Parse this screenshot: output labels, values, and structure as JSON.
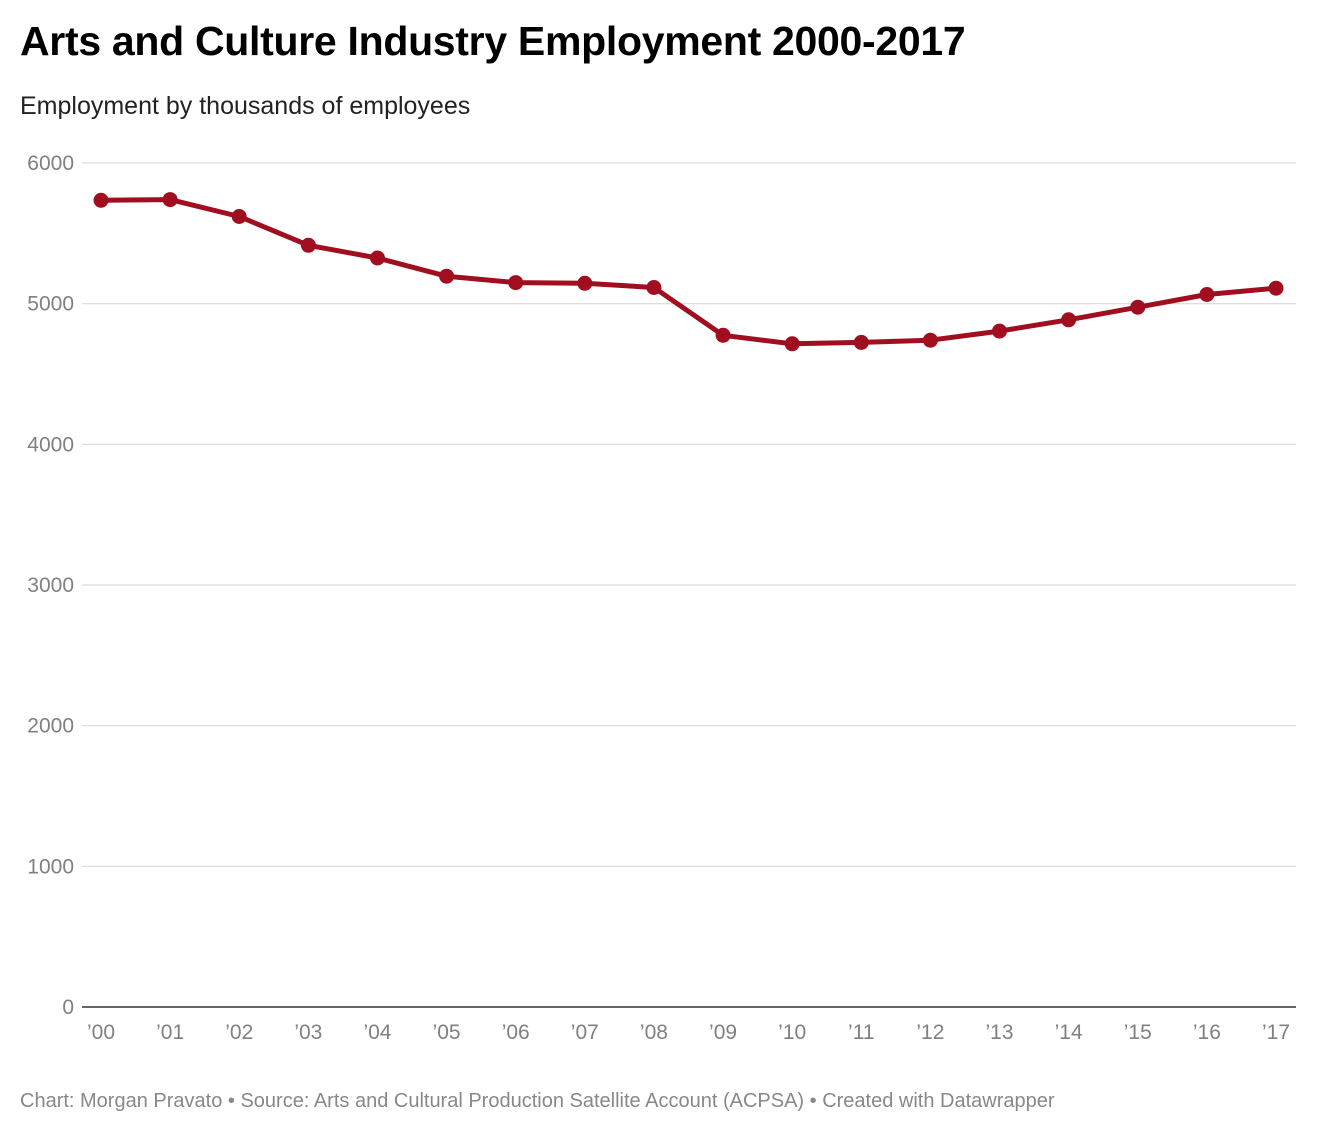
{
  "header": {
    "title": "Arts and Culture Industry Employment 2000-2017",
    "subtitle": "Employment by thousands of employees"
  },
  "footer": {
    "chart_credit": "Chart: Morgan Pravato",
    "source": "Source: Arts and Cultural Production Satellite Account (ACPSA)",
    "tool": "Created with Datawrapper",
    "separator": " • "
  },
  "colors": {
    "line": "#a00e1f",
    "grid": "#d9d9d9",
    "baseline": "#333333"
  },
  "chart_data": {
    "type": "line",
    "title": "Arts and Culture Industry Employment 2000-2017",
    "subtitle": "Employment by thousands of employees",
    "xlabel": "",
    "ylabel": "",
    "categories": [
      "’00",
      "’01",
      "’02",
      "’03",
      "’04",
      "’05",
      "’06",
      "’07",
      "’08",
      "’09",
      "’10",
      "’11",
      "’12",
      "’13",
      "’14",
      "’15",
      "’16",
      "’17"
    ],
    "x": [
      2000,
      2001,
      2002,
      2003,
      2004,
      2005,
      2006,
      2007,
      2008,
      2009,
      2010,
      2011,
      2012,
      2013,
      2014,
      2015,
      2016,
      2017
    ],
    "series": [
      {
        "values": [
          5735,
          5740,
          5620,
          5415,
          5325,
          5195,
          5150,
          5145,
          5115,
          4775,
          4715,
          4725,
          4740,
          4805,
          4885,
          4975,
          5065,
          5110
        ]
      }
    ],
    "ylim": [
      0,
      6000
    ],
    "yticks": [
      0,
      1000,
      2000,
      3000,
      4000,
      5000,
      6000
    ],
    "grid": true,
    "legend": "none"
  }
}
